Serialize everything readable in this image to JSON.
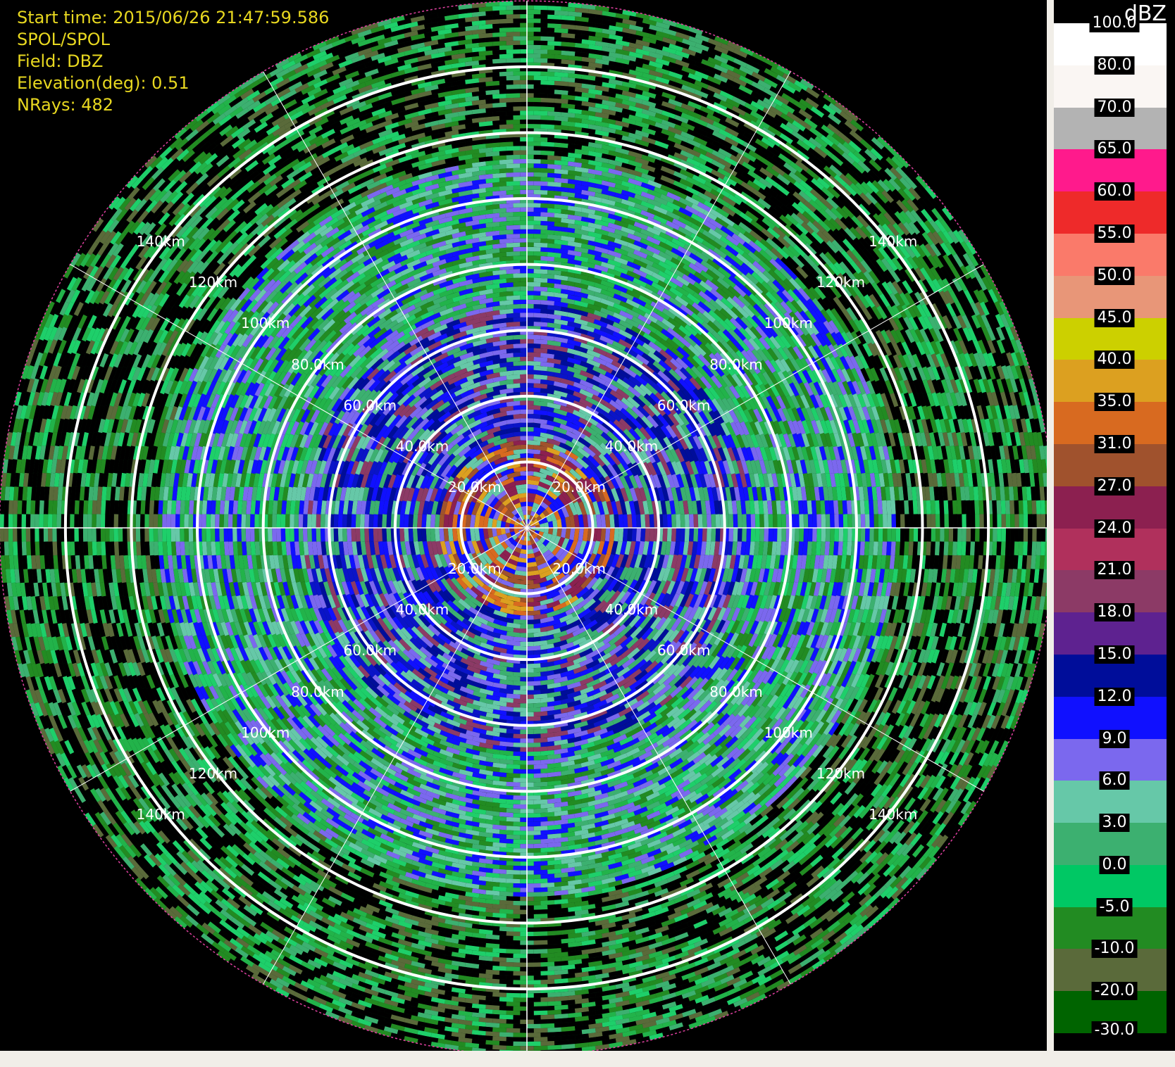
{
  "info": {
    "start_time": "Start time: 2015/06/26 21:47:59.586",
    "radar": "SPOL/SPOL",
    "field": "Field: DBZ",
    "elevation": "Elevation(deg): 0.51",
    "nrays": "NRays: 482"
  },
  "rings": {
    "labels": [
      "20.0km",
      "40.0km",
      "60.0km",
      "80.0km",
      "100km",
      "120km",
      "140km"
    ],
    "ranges_km": [
      20,
      40,
      60,
      80,
      100,
      120,
      140,
      160
    ]
  },
  "colorbar": {
    "unit": "dBZ",
    "top_label": "100.0",
    "labels": [
      "80.0",
      "70.0",
      "65.0",
      "60.0",
      "55.0",
      "50.0",
      "45.0",
      "40.0",
      "35.0",
      "31.0",
      "27.0",
      "24.0",
      "21.0",
      "18.0",
      "15.0",
      "12.0",
      "9.0",
      "6.0",
      "3.0",
      "0.0",
      "-5.0",
      "-10.0",
      "-20.0",
      "-30.0"
    ],
    "colors": [
      "#ffffff",
      "#faf6f3",
      "#b3b3b3",
      "#ff1a8c",
      "#ee2a2a",
      "#fa7a6a",
      "#e89678",
      "#ccd000",
      "#dca020",
      "#d86a20",
      "#a0522d",
      "#8c2050",
      "#b0305c",
      "#8c3a66",
      "#5e2290",
      "#000d9a",
      "#1010ff",
      "#7b68ee",
      "#66c8a8",
      "#3cb070",
      "#00c864",
      "#228b22",
      "#5a6a3a",
      "#006400"
    ]
  }
}
